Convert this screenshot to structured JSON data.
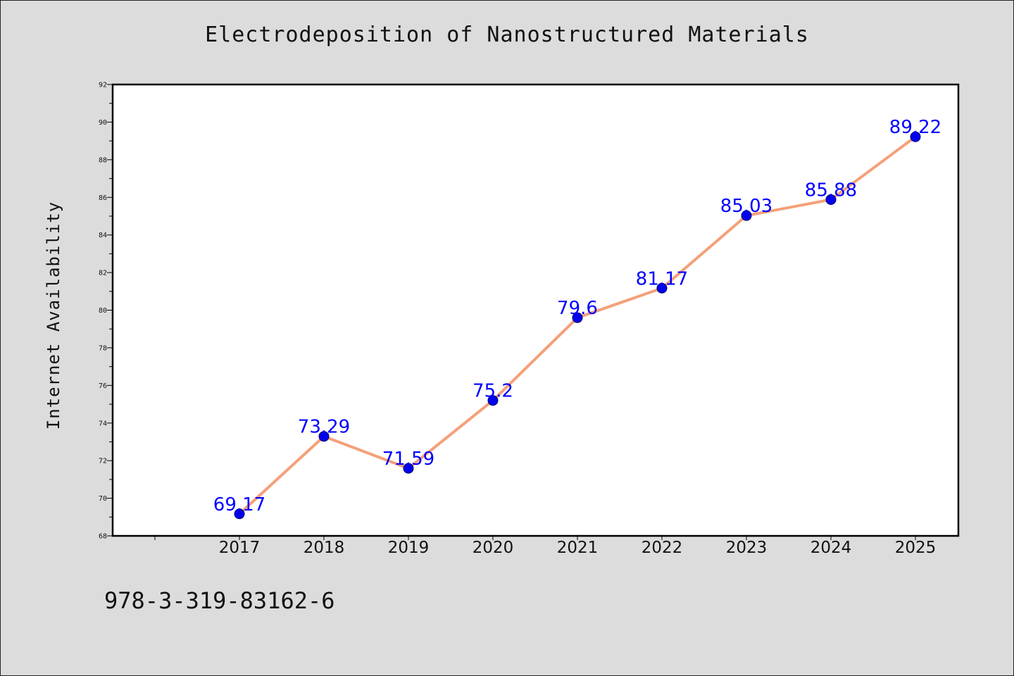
{
  "footer": {
    "code": "978-3-319-83162-6"
  },
  "chart_data": {
    "type": "line",
    "title": "Electrodeposition of Nanostructured Materials",
    "xlabel": "",
    "ylabel": "Internet Availability",
    "categories": [
      "2017",
      "2018",
      "2019",
      "2020",
      "2021",
      "2022",
      "2023",
      "2024",
      "2025"
    ],
    "series": [
      {
        "values": [
          69.17,
          73.29,
          71.59,
          75.2,
          79.6,
          81.17,
          85.03,
          85.88,
          89.22
        ],
        "labels": [
          "69.17",
          "73.29",
          "71.59",
          "75.2",
          "79.6",
          "81.17",
          "85.03",
          "85.88",
          "89.22"
        ]
      }
    ],
    "ylim": [
      68,
      92
    ],
    "yticks": [
      "68",
      "70",
      "72",
      "74",
      "76",
      "78",
      "80",
      "82",
      "84",
      "86",
      "88",
      "90",
      "92"
    ],
    "grid": false,
    "legend": "none",
    "colors": {
      "line": "#f4a07a",
      "marker": "#0000ee",
      "data_label": "#0000ff",
      "background": "#dcdcdc",
      "plot_background": "#ffffff"
    }
  }
}
